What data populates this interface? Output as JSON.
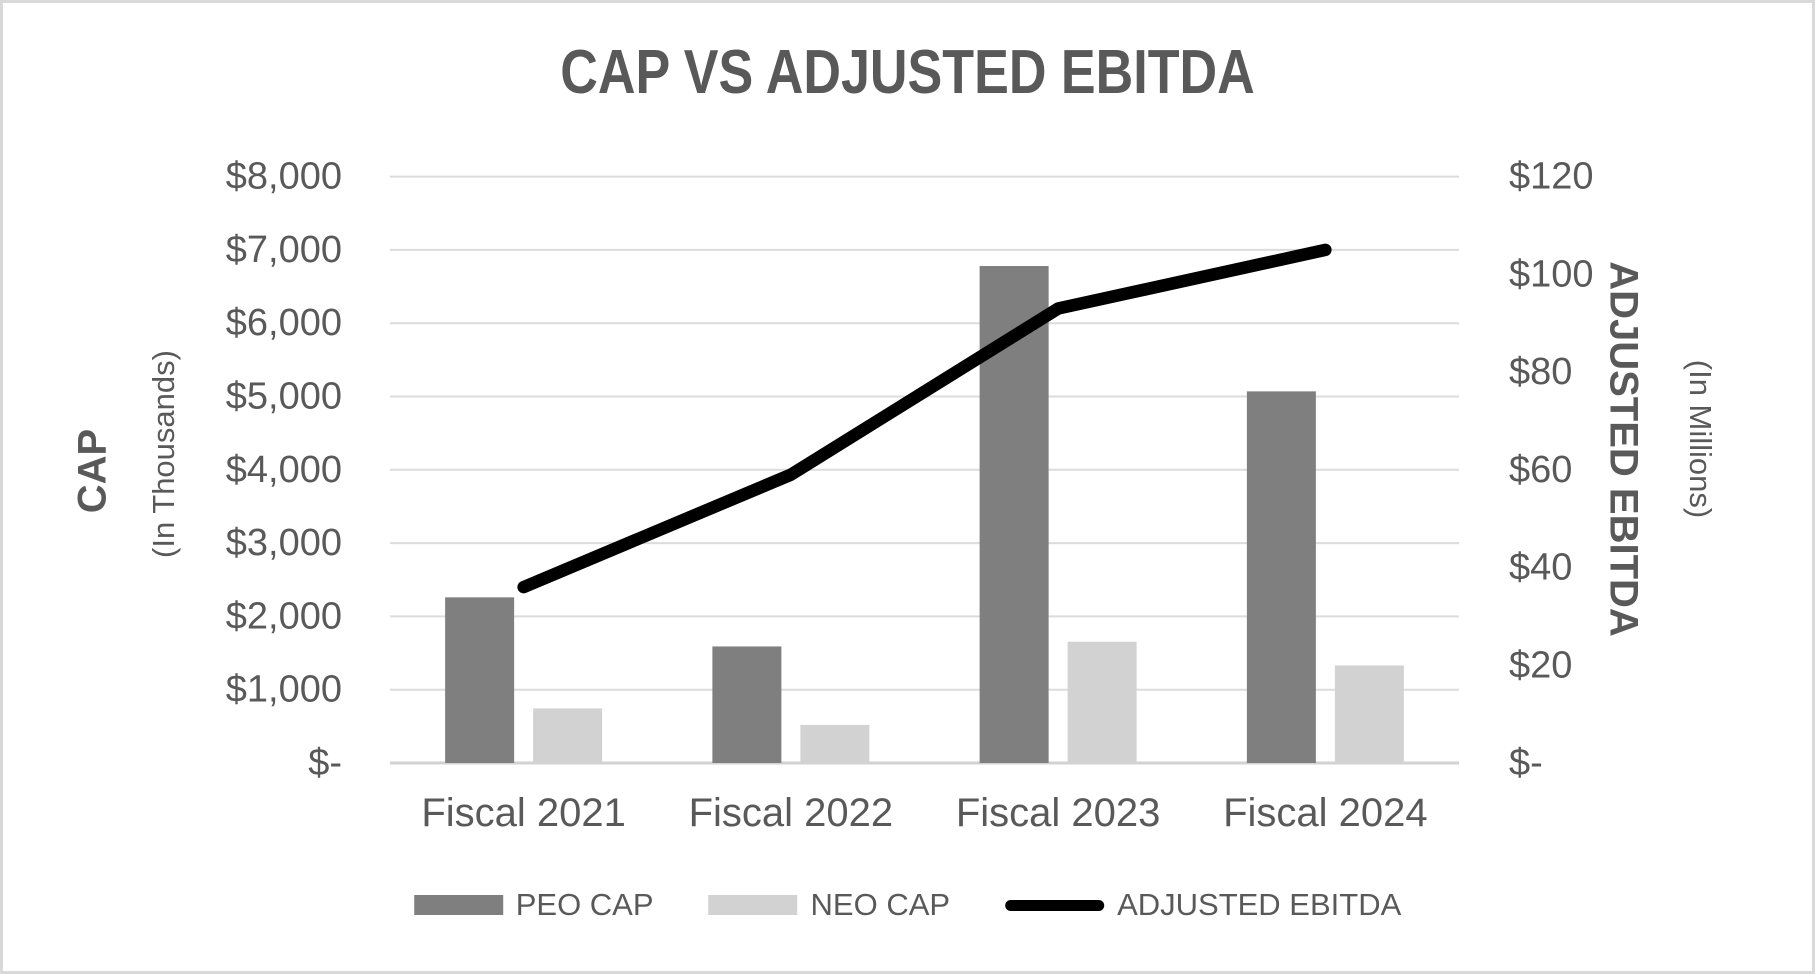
{
  "chart_data": {
    "type": "combo",
    "title": "CAP VS ADJUSTED EBITDA",
    "categories": [
      "Fiscal 2021",
      "Fiscal 2022",
      "Fiscal 2023",
      "Fiscal 2024"
    ],
    "series": [
      {
        "name": "PEO CAP",
        "type": "bar",
        "axis": "left",
        "color": "#7f7f7f",
        "values": [
          2260,
          1590,
          6780,
          5070
        ]
      },
      {
        "name": "NEO CAP",
        "type": "bar",
        "axis": "left",
        "color": "#d2d2d2",
        "values": [
          745,
          520,
          1655,
          1330
        ]
      },
      {
        "name": "ADJUSTED EBITDA",
        "type": "line",
        "axis": "right",
        "color": "#000000",
        "values": [
          36,
          59,
          93,
          105
        ]
      }
    ],
    "left_axis": {
      "title": "CAP",
      "subtitle": "(In Thousands)",
      "min": 0,
      "max": 8000,
      "step": 1000,
      "ticks": [
        "$8,000",
        "$7,000",
        "$6,000",
        "$5,000",
        "$4,000",
        "$3,000",
        "$2,000",
        "$1,000",
        "$-"
      ]
    },
    "right_axis": {
      "title": "ADJUSTED EBITDA",
      "subtitle": "(In Millions)",
      "min": 0,
      "max": 120,
      "step": 20,
      "ticks": [
        "$120",
        "$100",
        "$80",
        "$60",
        "$40",
        "$20",
        "$-"
      ]
    },
    "legend": [
      "PEO CAP",
      "NEO CAP",
      "ADJUSTED EBITDA"
    ],
    "grid": true,
    "legend_position": "bottom"
  },
  "colors": {
    "text": "#595959",
    "grid": "#dcdcdc",
    "baseline": "#d2d2d2",
    "border": "#d9d9d9",
    "background": "#ffffff"
  }
}
